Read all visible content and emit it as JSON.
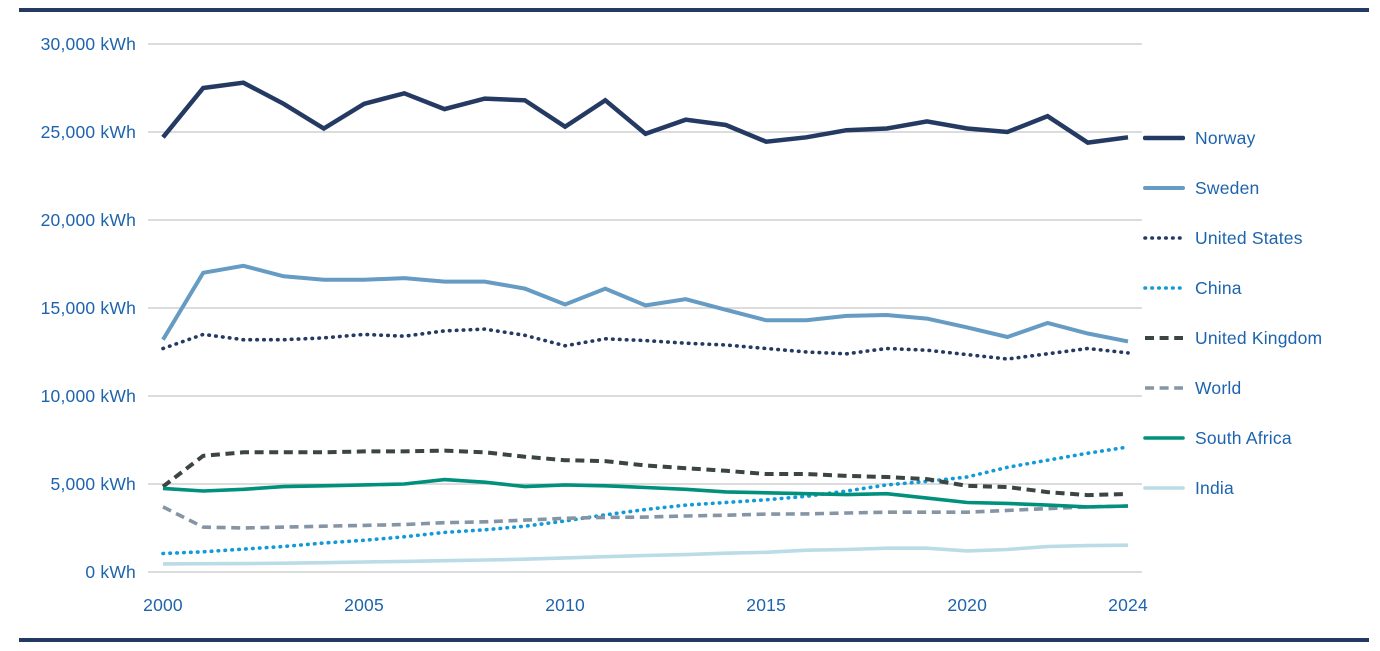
{
  "chart_data": {
    "type": "line",
    "title": "",
    "unit": "kWh",
    "xlabel": "",
    "ylabel": "",
    "ylim": [
      0,
      30000
    ],
    "grid": "horizontal",
    "legend_position": "right",
    "x": [
      2000,
      2001,
      2002,
      2003,
      2004,
      2005,
      2006,
      2007,
      2008,
      2009,
      2010,
      2011,
      2012,
      2013,
      2014,
      2015,
      2016,
      2017,
      2018,
      2019,
      2020,
      2021,
      2022,
      2023,
      2024
    ],
    "x_tick_labels": [
      "2000",
      "2005",
      "2010",
      "2015",
      "2020",
      "2024"
    ],
    "x_tick_years": [
      2000,
      2005,
      2010,
      2015,
      2020,
      2024
    ],
    "y_ticks": [
      0,
      5000,
      10000,
      15000,
      20000,
      25000,
      30000
    ],
    "y_tick_labels": [
      "0 kWh",
      "5,000 kWh",
      "10,000 kWh",
      "15,000 kWh",
      "20,000 kWh",
      "25,000 kWh",
      "30,000 kWh"
    ],
    "series": [
      {
        "name": "Norway",
        "color": "#253a63",
        "style": "solid",
        "width": 4.5,
        "values": [
          24700,
          27500,
          27800,
          26600,
          25200,
          26600,
          27200,
          26300,
          26900,
          26800,
          25300,
          26800,
          24900,
          25700,
          25400,
          24450,
          24700,
          25100,
          25200,
          25600,
          25200,
          25000,
          25900,
          24400,
          24700
        ]
      },
      {
        "name": "Sweden",
        "color": "#669bc3",
        "style": "solid",
        "width": 4,
        "values": [
          13200,
          17000,
          17400,
          16800,
          16600,
          16600,
          16700,
          16500,
          16500,
          16100,
          15200,
          16100,
          15150,
          15500,
          14900,
          14300,
          14300,
          14550,
          14600,
          14400,
          13900,
          13350,
          14150,
          13550,
          13100
        ]
      },
      {
        "name": "United States",
        "color": "#253a63",
        "style": "dotted",
        "width": 3.6,
        "values": [
          12700,
          13500,
          13200,
          13200,
          13300,
          13500,
          13400,
          13700,
          13800,
          13450,
          12850,
          13250,
          13150,
          13000,
          12900,
          12700,
          12500,
          12400,
          12700,
          12600,
          12350,
          12100,
          12400,
          12700,
          12450
        ]
      },
      {
        "name": "China",
        "color": "#109bd8",
        "style": "dotted",
        "width": 3.6,
        "values": [
          1050,
          1150,
          1300,
          1450,
          1650,
          1800,
          2000,
          2250,
          2400,
          2600,
          2900,
          3250,
          3550,
          3800,
          3950,
          4100,
          4300,
          4600,
          4950,
          5150,
          5400,
          5950,
          6350,
          6750,
          7100
        ]
      },
      {
        "name": "United Kingdom",
        "color": "#3b4543",
        "style": "dashed",
        "width": 4,
        "values": [
          4850,
          6600,
          6800,
          6800,
          6800,
          6850,
          6850,
          6900,
          6800,
          6550,
          6350,
          6300,
          6050,
          5900,
          5750,
          5570,
          5570,
          5460,
          5400,
          5280,
          4890,
          4830,
          4540,
          4370,
          4430
        ]
      },
      {
        "name": "World",
        "color": "#8695a5",
        "style": "dashed",
        "width": 3.6,
        "values": [
          3700,
          2550,
          2500,
          2550,
          2600,
          2650,
          2700,
          2800,
          2850,
          2950,
          3050,
          3100,
          3120,
          3180,
          3230,
          3290,
          3300,
          3350,
          3400,
          3400,
          3400,
          3500,
          3600,
          3700,
          3750
        ]
      },
      {
        "name": "South Africa",
        "color": "#00907c",
        "style": "solid",
        "width": 3.6,
        "values": [
          4750,
          4600,
          4700,
          4850,
          4900,
          4950,
          5000,
          5250,
          5100,
          4850,
          4950,
          4900,
          4800,
          4700,
          4550,
          4500,
          4450,
          4400,
          4450,
          4200,
          3950,
          3900,
          3800,
          3700,
          3750
        ]
      },
      {
        "name": "India",
        "color": "#b9dce6",
        "style": "solid",
        "width": 3.6,
        "values": [
          460,
          470,
          480,
          500,
          530,
          570,
          600,
          640,
          680,
          730,
          800,
          870,
          940,
          990,
          1070,
          1120,
          1240,
          1280,
          1350,
          1350,
          1200,
          1280,
          1450,
          1500,
          1520
        ]
      }
    ]
  },
  "colors": {
    "axis_text": "#1d64ad",
    "gridline": "#c8c8c8",
    "rule": "#253a63",
    "background": "#ffffff"
  }
}
